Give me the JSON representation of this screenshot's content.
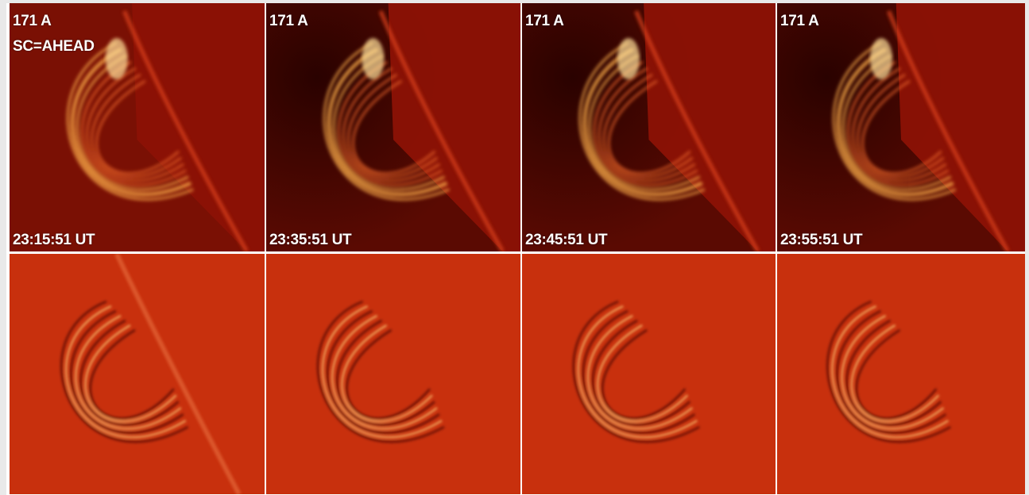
{
  "columns": [
    {
      "wavelength": "171 A",
      "spacecraft": "SC=AHEAD",
      "time": "23:15:51 UT"
    },
    {
      "wavelength": "171 A",
      "spacecraft": "",
      "time": "23:35:51 UT"
    },
    {
      "wavelength": "171 A",
      "spacecraft": "",
      "time": "23:45:51 UT"
    },
    {
      "wavelength": "171 A",
      "spacecraft": "",
      "time": "23:55:51 UT"
    }
  ],
  "colors": {
    "limb_background": "#8c1205",
    "space_dark": "#2a0200",
    "loop_bright": "#ffb04a",
    "diff_background": "#c8300d",
    "diff_bright": "#ffd07a",
    "diff_dark": "#3a0600"
  }
}
